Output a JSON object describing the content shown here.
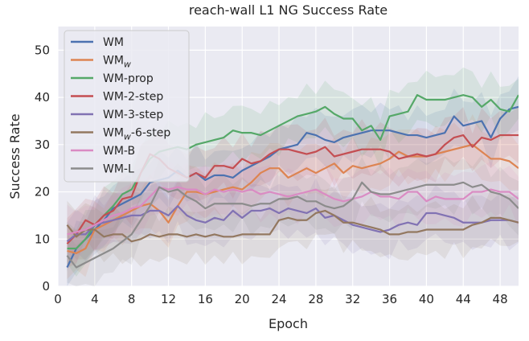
{
  "chart_data": {
    "type": "line",
    "title": "reach-wall L1 NG Success Rate",
    "xlabel": "Epoch",
    "ylabel": "Success Rate",
    "xlim": [
      0,
      50
    ],
    "ylim": [
      0,
      55
    ],
    "xticks": [
      0,
      4,
      8,
      12,
      16,
      20,
      24,
      28,
      32,
      36,
      40,
      44,
      48
    ],
    "yticks": [
      0,
      10,
      20,
      30,
      40,
      50
    ],
    "grid": true,
    "legend_position": "top-left",
    "x": [
      1,
      2,
      3,
      4,
      5,
      6,
      7,
      8,
      9,
      10,
      11,
      12,
      13,
      14,
      15,
      16,
      17,
      18,
      19,
      20,
      21,
      22,
      23,
      24,
      25,
      26,
      27,
      28,
      29,
      30,
      31,
      32,
      33,
      34,
      35,
      36,
      37,
      38,
      39,
      40,
      41,
      42,
      43,
      44,
      45,
      46,
      47,
      48,
      49,
      50
    ],
    "series": [
      {
        "name": "WM",
        "color": "#4c72b0",
        "values": [
          4,
          8,
          10,
          12,
          14,
          16.5,
          17.5,
          18.5,
          19.5,
          22,
          22.5,
          23,
          24.5,
          23,
          24,
          22.5,
          23.5,
          23.5,
          23,
          24.5,
          25.5,
          26.5,
          27.5,
          29,
          29.5,
          30,
          32.5,
          32,
          31,
          30.5,
          31.5,
          32,
          32.5,
          33,
          33,
          33,
          32.5,
          32,
          32,
          31.5,
          32,
          32.5,
          36,
          34,
          34.5,
          35,
          31.5,
          35.5,
          37.5,
          38
        ]
      },
      {
        "name": "WM_w",
        "color": "#dd8452",
        "values": [
          7.5,
          7,
          8,
          12,
          13,
          14,
          15,
          16,
          17,
          17.5,
          16,
          13.5,
          17,
          20,
          20,
          19.5,
          20,
          20.5,
          21,
          20.5,
          22,
          24,
          25,
          25,
          23,
          24,
          25,
          24,
          25,
          26,
          24,
          25.5,
          25,
          25.5,
          26,
          27,
          28.5,
          27.5,
          27.5,
          27.5,
          28,
          28.5,
          29,
          29.5,
          30,
          28.5,
          27,
          27,
          26.5,
          25
        ]
      },
      {
        "name": "WM-prop",
        "color": "#55a868",
        "values": [
          8,
          8,
          10,
          13,
          15,
          17,
          19.5,
          20.5,
          24,
          27,
          28.5,
          29,
          29.5,
          29,
          30,
          30.5,
          31,
          31.5,
          33,
          32.5,
          32.5,
          32,
          33,
          34,
          35,
          36,
          36.5,
          37,
          38,
          36.5,
          35.5,
          35.5,
          33,
          34,
          31,
          36,
          36.5,
          37,
          40.5,
          39.5,
          39.5,
          39.5,
          40,
          40.5,
          40,
          38,
          39.5,
          37.5,
          37,
          40.5
        ]
      },
      {
        "name": "WM-2-step",
        "color": "#c44e52",
        "values": [
          9,
          11,
          14,
          13,
          15,
          16,
          18.5,
          19,
          24,
          28,
          27,
          25,
          24,
          23,
          24,
          23,
          25.5,
          25.5,
          25,
          27,
          26,
          26.5,
          28,
          29,
          29,
          28.5,
          28,
          28.5,
          29.5,
          27.5,
          28,
          28.5,
          29,
          29,
          29,
          28.5,
          27,
          27.5,
          28,
          27.5,
          28,
          30,
          31.5,
          32,
          29.5,
          31.5,
          31,
          32,
          32,
          32
        ]
      },
      {
        "name": "WM-3-step",
        "color": "#8172b3",
        "values": [
          9.5,
          11,
          11,
          13,
          13.5,
          14,
          14.5,
          15,
          15,
          16,
          16,
          15,
          17,
          15,
          14,
          13.5,
          14.5,
          14,
          16,
          14.5,
          16,
          16,
          16.5,
          15.5,
          16.5,
          16,
          15.5,
          16.5,
          14.5,
          15,
          14,
          13,
          12.5,
          12,
          11.5,
          12,
          13,
          13.5,
          13,
          15.5,
          15.5,
          15,
          14.5,
          13.5,
          13.5,
          13.5,
          14,
          14,
          14,
          13.5
        ]
      },
      {
        "name": "WM_w-6-step",
        "color": "#937860",
        "values": [
          13,
          10.5,
          12,
          12,
          10.5,
          11,
          11,
          9.5,
          10,
          11,
          10.5,
          11,
          11,
          10.5,
          11,
          10.5,
          11,
          10.5,
          10.5,
          11,
          11,
          11,
          11,
          14,
          14.5,
          14,
          14,
          15.5,
          16,
          15,
          13.5,
          13.5,
          13,
          12.5,
          12,
          11,
          11,
          11.5,
          11.5,
          12,
          12,
          12,
          12,
          12,
          13,
          13.5,
          14.5,
          14.5,
          14,
          13.5
        ]
      },
      {
        "name": "WM-B",
        "color": "#da8bc3",
        "values": [
          11,
          11.5,
          12,
          13,
          14,
          15,
          15.5,
          16.5,
          17,
          19,
          21,
          20.5,
          21,
          20.5,
          20.5,
          19.5,
          20.5,
          20,
          20.5,
          20,
          20.5,
          19.5,
          20,
          19.5,
          19,
          19.5,
          20,
          20.5,
          19.5,
          18.5,
          18,
          18.5,
          19,
          20,
          19,
          19,
          18.5,
          20,
          20,
          18,
          19,
          18.5,
          18.5,
          18.5,
          20,
          20,
          20.5,
          20,
          20,
          18.5
        ]
      },
      {
        "name": "WM-L",
        "color": "#8c8c8c",
        "values": [
          6.5,
          4,
          5,
          6,
          7,
          8,
          9.5,
          11,
          14,
          17,
          21,
          20,
          20.5,
          19,
          18,
          16.5,
          17.5,
          17.5,
          17.5,
          17.5,
          17,
          17.5,
          17.5,
          18.5,
          18.5,
          19,
          18,
          18,
          17,
          16.5,
          17,
          18.5,
          22,
          20,
          19.5,
          19.5,
          20,
          20.5,
          21,
          21.5,
          21.5,
          21.5,
          21.5,
          22,
          21,
          21.5,
          20,
          19.5,
          18.5,
          16.5
        ]
      }
    ]
  }
}
